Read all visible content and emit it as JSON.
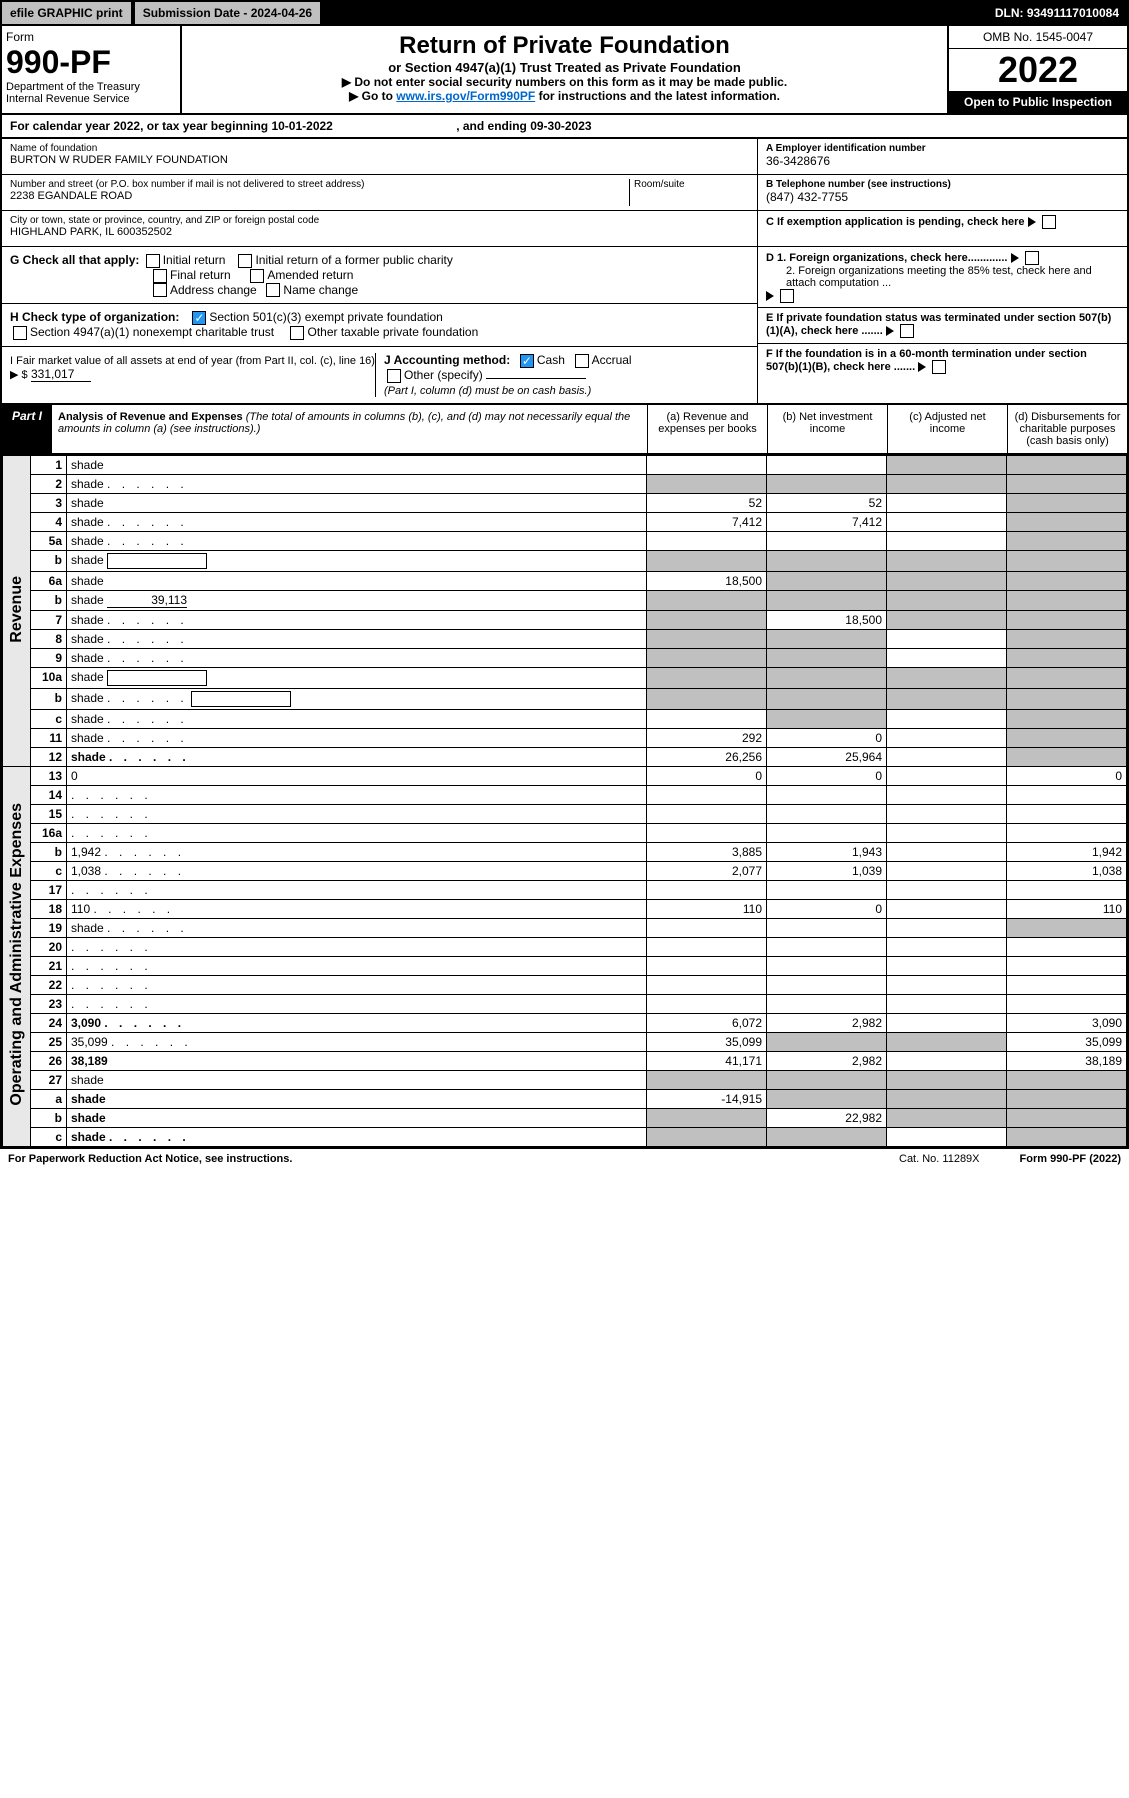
{
  "top": {
    "efile": "efile GRAPHIC print",
    "submission": "Submission Date - 2024-04-26",
    "dln": "DLN: 93491117010084"
  },
  "header": {
    "form_label": "Form",
    "form_num": "990-PF",
    "dept": "Department of the Treasury",
    "irs": "Internal Revenue Service",
    "title": "Return of Private Foundation",
    "subtitle": "or Section 4947(a)(1) Trust Treated as Private Foundation",
    "note1": "▶ Do not enter social security numbers on this form as it may be made public.",
    "note2_pre": "▶ Go to ",
    "note2_link": "www.irs.gov/Form990PF",
    "note2_post": " for instructions and the latest information.",
    "omb": "OMB No. 1545-0047",
    "year": "2022",
    "open": "Open to Public Inspection"
  },
  "cal_year": {
    "text_pre": "For calendar year 2022, or tax year beginning ",
    "begin": "10-01-2022",
    "text_mid": " , and ending ",
    "end": "09-30-2023"
  },
  "info": {
    "name_label": "Name of foundation",
    "name": "BURTON W RUDER FAMILY FOUNDATION",
    "addr_label": "Number and street (or P.O. box number if mail is not delivered to street address)",
    "addr": "2238 EGANDALE ROAD",
    "room_label": "Room/suite",
    "city_label": "City or town, state or province, country, and ZIP or foreign postal code",
    "city": "HIGHLAND PARK, IL  600352502",
    "ein_label": "A Employer identification number",
    "ein": "36-3428676",
    "phone_label": "B Telephone number (see instructions)",
    "phone": "(847) 432-7755",
    "c_label": "C If exemption application is pending, check here",
    "d1": "D 1. Foreign organizations, check here.............",
    "d2": "2. Foreign organizations meeting the 85% test, check here and attach computation ...",
    "e": "E  If private foundation status was terminated under section 507(b)(1)(A), check here .......",
    "f": "F  If the foundation is in a 60-month termination under section 507(b)(1)(B), check here .......",
    "g_label": "G Check all that apply:",
    "g_initial": "Initial return",
    "g_initial_former": "Initial return of a former public charity",
    "g_final": "Final return",
    "g_amended": "Amended return",
    "g_addr": "Address change",
    "g_name": "Name change",
    "h_label": "H Check type of organization:",
    "h_501c3": "Section 501(c)(3) exempt private foundation",
    "h_4947": "Section 4947(a)(1) nonexempt charitable trust",
    "h_other": "Other taxable private foundation",
    "i_label": "I Fair market value of all assets at end of year (from Part II, col. (c), line 16) ▶ $",
    "i_value": "331,017",
    "j_label": "J Accounting method:",
    "j_cash": "Cash",
    "j_accrual": "Accrual",
    "j_other": "Other (specify)",
    "j_note": "(Part I, column (d) must be on cash basis.)"
  },
  "part1": {
    "label": "Part I",
    "title": "Analysis of Revenue and Expenses",
    "title_note": " (The total of amounts in columns (b), (c), and (d) may not necessarily equal the amounts in column (a) (see instructions).)",
    "col_a": "(a) Revenue and expenses per books",
    "col_b": "(b) Net investment income",
    "col_c": "(c) Adjusted net income",
    "col_d": "(d) Disbursements for charitable purposes (cash basis only)"
  },
  "sides": {
    "revenue": "Revenue",
    "expenses": "Operating and Administrative Expenses"
  },
  "rows": [
    {
      "n": "1",
      "d": "shade",
      "a": "",
      "b": "",
      "c": "shade"
    },
    {
      "n": "2",
      "d": "shade",
      "a": "shade",
      "b": "shade",
      "c": "shade",
      "dots": true
    },
    {
      "n": "3",
      "d": "shade",
      "a": "52",
      "b": "52",
      "c": ""
    },
    {
      "n": "4",
      "d": "shade",
      "a": "7,412",
      "b": "7,412",
      "c": "",
      "dots": true
    },
    {
      "n": "5a",
      "d": "shade",
      "a": "",
      "b": "",
      "c": "",
      "dots": true
    },
    {
      "n": "b",
      "d": "shade",
      "a": "shade",
      "b": "shade",
      "c": "shade",
      "inline_box": true
    },
    {
      "n": "6a",
      "d": "shade",
      "a": "18,500",
      "b": "shade",
      "c": "shade"
    },
    {
      "n": "b",
      "d": "shade",
      "a": "shade",
      "b": "shade",
      "c": "shade",
      "inline_val": "39,113"
    },
    {
      "n": "7",
      "d": "shade",
      "a": "shade",
      "b": "18,500",
      "c": "shade",
      "dots": true
    },
    {
      "n": "8",
      "d": "shade",
      "a": "shade",
      "b": "shade",
      "c": "",
      "dots": true
    },
    {
      "n": "9",
      "d": "shade",
      "a": "shade",
      "b": "shade",
      "c": "",
      "dots": true
    },
    {
      "n": "10a",
      "d": "shade",
      "a": "shade",
      "b": "shade",
      "c": "shade",
      "inline_box": true
    },
    {
      "n": "b",
      "d": "shade",
      "a": "shade",
      "b": "shade",
      "c": "shade",
      "dots": true,
      "inline_box": true
    },
    {
      "n": "c",
      "d": "shade",
      "a": "",
      "b": "shade",
      "c": "",
      "dots": true
    },
    {
      "n": "11",
      "d": "shade",
      "a": "292",
      "b": "0",
      "c": "",
      "dots": true
    },
    {
      "n": "12",
      "d": "shade",
      "a": "26,256",
      "b": "25,964",
      "c": "",
      "bold": true,
      "dots": true
    },
    {
      "n": "13",
      "d": "0",
      "a": "0",
      "b": "0",
      "c": "",
      "section": "exp"
    },
    {
      "n": "14",
      "d": "",
      "a": "",
      "b": "",
      "c": "",
      "dots": true
    },
    {
      "n": "15",
      "d": "",
      "a": "",
      "b": "",
      "c": "",
      "dots": true
    },
    {
      "n": "16a",
      "d": "",
      "a": "",
      "b": "",
      "c": "",
      "dots": true
    },
    {
      "n": "b",
      "d": "1,942",
      "a": "3,885",
      "b": "1,943",
      "c": "",
      "dots": true
    },
    {
      "n": "c",
      "d": "1,038",
      "a": "2,077",
      "b": "1,039",
      "c": "",
      "dots": true
    },
    {
      "n": "17",
      "d": "",
      "a": "",
      "b": "",
      "c": "",
      "dots": true
    },
    {
      "n": "18",
      "d": "110",
      "a": "110",
      "b": "0",
      "c": "",
      "dots": true
    },
    {
      "n": "19",
      "d": "shade",
      "a": "",
      "b": "",
      "c": "",
      "dots": true
    },
    {
      "n": "20",
      "d": "",
      "a": "",
      "b": "",
      "c": "",
      "dots": true
    },
    {
      "n": "21",
      "d": "",
      "a": "",
      "b": "",
      "c": "",
      "dots": true
    },
    {
      "n": "22",
      "d": "",
      "a": "",
      "b": "",
      "c": "",
      "dots": true
    },
    {
      "n": "23",
      "d": "",
      "a": "",
      "b": "",
      "c": "",
      "dots": true
    },
    {
      "n": "24",
      "d": "3,090",
      "a": "6,072",
      "b": "2,982",
      "c": "",
      "bold": true,
      "dots": true
    },
    {
      "n": "25",
      "d": "35,099",
      "a": "35,099",
      "b": "shade",
      "c": "shade",
      "dots": true
    },
    {
      "n": "26",
      "d": "38,189",
      "a": "41,171",
      "b": "2,982",
      "c": "",
      "bold": true
    },
    {
      "n": "27",
      "d": "shade",
      "a": "shade",
      "b": "shade",
      "c": "shade",
      "section": "final"
    },
    {
      "n": "a",
      "d": "shade",
      "a": "-14,915",
      "b": "shade",
      "c": "shade",
      "bold": true
    },
    {
      "n": "b",
      "d": "shade",
      "a": "shade",
      "b": "22,982",
      "c": "shade",
      "bold": true
    },
    {
      "n": "c",
      "d": "shade",
      "a": "shade",
      "b": "shade",
      "c": "",
      "bold": true,
      "dots": true
    }
  ],
  "footer": {
    "pra": "For Paperwork Reduction Act Notice, see instructions.",
    "cat": "Cat. No. 11289X",
    "form": "Form 990-PF (2022)"
  },
  "colors": {
    "shade": "#c0c0c0",
    "side": "#e8e8e8",
    "checked": "#2196f3"
  }
}
